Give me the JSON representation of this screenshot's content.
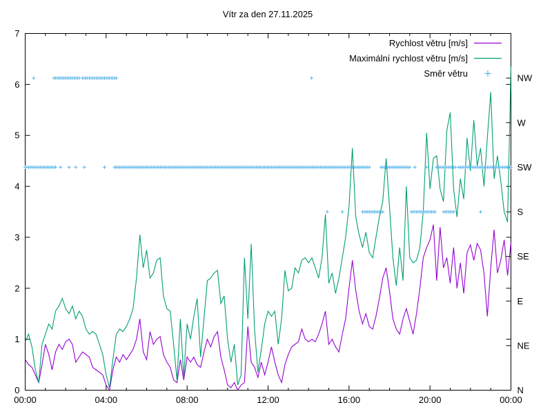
{
  "title": "Vítr za den 27.11.2025",
  "colors": {
    "speed": "#9400d3",
    "max_speed": "#009e73",
    "direction": "#56b4e9",
    "axis": "#000000",
    "background": "#ffffff"
  },
  "legend": {
    "items": [
      {
        "label": "Rychlost větru [m/s]",
        "color": "#9400d3",
        "sample": "line"
      },
      {
        "label": "Maximální rychlost větru [m/s]",
        "color": "#009e73",
        "sample": "line"
      },
      {
        "label": "Směr větru",
        "color": "#56b4e9",
        "sample": "plus"
      }
    ]
  },
  "x_axis": {
    "min_hours": 0,
    "max_hours": 24,
    "major_tick_hours": [
      0,
      4,
      8,
      12,
      16,
      20,
      24
    ],
    "major_tick_labels": [
      "00:00",
      "04:00",
      "08:00",
      "12:00",
      "16:00",
      "20:00",
      "00:00"
    ],
    "minor_tick_step_hours": 1
  },
  "y_axis": {
    "min": 0,
    "max": 7,
    "tick_values": [
      0,
      1,
      2,
      3,
      4,
      5,
      6,
      7
    ],
    "tick_labels": [
      "0",
      "1",
      "2",
      "3",
      "4",
      "5",
      "6",
      "7"
    ]
  },
  "y2_axis": {
    "labels": [
      "N",
      "NE",
      "E",
      "SE",
      "S",
      "SW",
      "W",
      "NW"
    ],
    "values": [
      0,
      0.875,
      1.75,
      2.625,
      3.5,
      4.375,
      5.25,
      6.125
    ]
  },
  "chart_data": {
    "type": "line",
    "title": "Vítr za den 27.11.2025",
    "xlabel": "",
    "ylabel": "",
    "xlim_hours": [
      0,
      24
    ],
    "ylim": [
      0,
      7
    ],
    "grid": false,
    "legend_position": "top-right-inside",
    "x_start_hour": 0,
    "x_step_hours": 0.1666667,
    "series": [
      {
        "id": "speed",
        "name": "Rychlost větru [m/s]",
        "color": "#9400d3",
        "unit": "m/s",
        "values": [
          0.6,
          0.5,
          0.45,
          0.3,
          0.15,
          0.5,
          0.9,
          0.7,
          0.4,
          0.75,
          0.9,
          0.8,
          0.95,
          1.0,
          0.9,
          0.55,
          0.65,
          0.75,
          0.7,
          0.65,
          0.45,
          0.4,
          0.35,
          0.3,
          0.1,
          0.0,
          0.4,
          0.65,
          0.55,
          0.7,
          0.6,
          0.7,
          0.8,
          1.0,
          1.4,
          0.75,
          0.6,
          1.15,
          0.9,
          1.0,
          1.05,
          0.7,
          0.55,
          0.45,
          0.2,
          0.15,
          0.6,
          0.2,
          0.65,
          0.55,
          0.65,
          0.5,
          0.45,
          0.75,
          1.0,
          0.85,
          1.05,
          1.15,
          0.65,
          0.4,
          0.1,
          0.05,
          0.15,
          0.0,
          0.1,
          0.15,
          1.25,
          0.55,
          0.45,
          0.25,
          0.55,
          0.3,
          0.55,
          0.85,
          0.55,
          0.3,
          0.15,
          0.5,
          0.7,
          0.85,
          0.9,
          0.95,
          1.2,
          1.0,
          0.95,
          1.0,
          0.95,
          1.1,
          1.3,
          1.55,
          0.9,
          1.0,
          0.85,
          0.75,
          1.1,
          1.4,
          2.0,
          2.55,
          1.95,
          1.55,
          1.3,
          1.5,
          1.25,
          1.2,
          1.45,
          1.8,
          2.2,
          2.4,
          1.95,
          1.4,
          1.2,
          1.1,
          1.4,
          1.6,
          1.35,
          1.1,
          1.5,
          2.0,
          2.6,
          2.8,
          2.95,
          3.25,
          2.15,
          3.2,
          2.4,
          2.6,
          2.1,
          2.8,
          2.0,
          2.5,
          1.9,
          2.7,
          2.85,
          2.55,
          2.88,
          2.75,
          2.3,
          1.45,
          2.4,
          3.15,
          2.3,
          2.55,
          2.95,
          2.25,
          2.9
        ]
      },
      {
        "id": "max-speed",
        "name": "Maximální rychlost větru [m/s]",
        "color": "#009e73",
        "unit": "m/s",
        "values": [
          0.95,
          1.1,
          0.85,
          0.4,
          0.15,
          0.9,
          1.1,
          1.3,
          1.2,
          1.55,
          1.65,
          1.8,
          1.6,
          1.5,
          1.65,
          1.4,
          1.55,
          1.45,
          1.2,
          1.1,
          1.15,
          1.1,
          0.9,
          0.7,
          0.3,
          0.05,
          0.6,
          1.1,
          1.2,
          1.15,
          1.25,
          1.4,
          1.6,
          2.2,
          3.05,
          2.4,
          2.75,
          2.2,
          2.3,
          2.55,
          2.6,
          1.85,
          1.6,
          1.55,
          0.9,
          0.2,
          1.4,
          0.25,
          1.3,
          1.0,
          1.45,
          1.8,
          0.65,
          1.4,
          2.15,
          2.2,
          2.3,
          2.35,
          1.7,
          1.85,
          1.0,
          0.55,
          0.9,
          0.1,
          0.3,
          2.6,
          1.4,
          2.87,
          1.2,
          0.35,
          0.8,
          1.3,
          1.55,
          1.45,
          1.55,
          0.9,
          1.4,
          2.35,
          1.95,
          2.0,
          2.4,
          2.3,
          2.55,
          2.6,
          2.5,
          2.6,
          2.4,
          2.2,
          2.6,
          3.45,
          2.1,
          2.3,
          1.9,
          2.2,
          2.6,
          3.0,
          3.6,
          4.75,
          3.4,
          3.05,
          2.8,
          3.1,
          2.7,
          2.6,
          3.0,
          3.4,
          3.7,
          4.55,
          3.6,
          2.6,
          2.05,
          2.8,
          2.15,
          4.0,
          2.6,
          2.5,
          2.55,
          2.8,
          3.5,
          5.05,
          3.95,
          4.55,
          4.6,
          3.95,
          3.7,
          5.1,
          5.45,
          3.95,
          3.4,
          4.15,
          3.75,
          4.95,
          4.3,
          5.3,
          4.4,
          4.75,
          4.0,
          4.95,
          5.85,
          4.15,
          4.6,
          4.1,
          3.5,
          3.3,
          6.35
        ]
      }
    ],
    "direction_series": {
      "id": "direction",
      "name": "Směr větru",
      "color": "#56b4e9",
      "marker": "+",
      "levels": {
        "N": 0,
        "NE": 0.875,
        "E": 1.75,
        "SE": 2.625,
        "S": 3.5,
        "SW": 4.375,
        "W": 5.25,
        "NW": 6.125
      },
      "sample_step_hours": 0.0833333,
      "segments_by_direction": {
        "NW": [
          [
            0.42,
            0.42
          ],
          [
            1.42,
            1.67
          ],
          [
            1.75,
            2.0
          ],
          [
            2.08,
            2.33
          ],
          [
            2.42,
            2.67
          ],
          [
            2.83,
            3.08
          ],
          [
            3.17,
            3.58
          ],
          [
            3.67,
            4.08
          ],
          [
            4.17,
            4.5
          ],
          [
            14.15,
            14.15
          ]
        ],
        "SW": [
          [
            0.0,
            1.5
          ],
          [
            1.75,
            1.75
          ],
          [
            2.17,
            2.17
          ],
          [
            2.5,
            2.5
          ],
          [
            2.92,
            2.92
          ],
          [
            3.92,
            3.92
          ],
          [
            4.42,
            17.0
          ],
          [
            17.58,
            19.0
          ],
          [
            19.25,
            19.25
          ],
          [
            19.83,
            19.83
          ],
          [
            20.33,
            21.25
          ],
          [
            21.42,
            24.0
          ]
        ],
        "S": [
          [
            14.92,
            14.92
          ],
          [
            15.67,
            15.67
          ],
          [
            16.67,
            17.67
          ],
          [
            19.08,
            20.25
          ],
          [
            20.67,
            21.17
          ],
          [
            22.5,
            22.5
          ]
        ]
      }
    }
  }
}
